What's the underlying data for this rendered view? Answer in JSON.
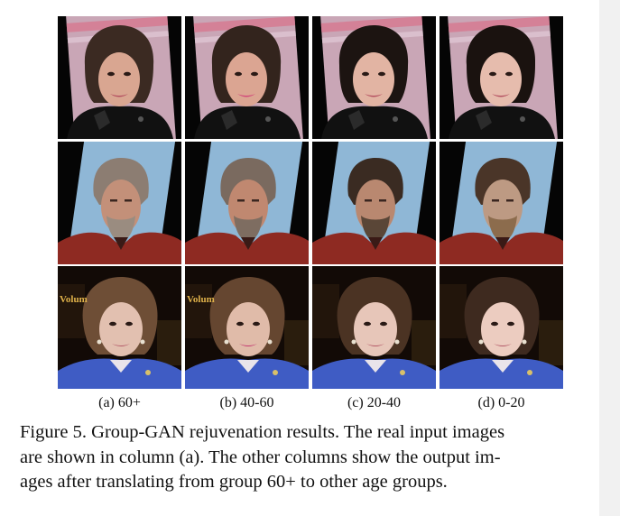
{
  "figure": {
    "columns": [
      {
        "caption": "(a) 60+"
      },
      {
        "caption": "(b) 40-60"
      },
      {
        "caption": "(c) 20-40"
      },
      {
        "caption": "(d) 0-20"
      }
    ],
    "rows": [
      {
        "subject": "woman with dark curly hair and dark top"
      },
      {
        "subject": "bearded man in red jacket"
      },
      {
        "subject": "woman with brown hair and blue jacket"
      }
    ],
    "text_in_image": "Volum",
    "caption_lines": [
      "Figure 5. Group-GAN rejuvenation results. The real input images",
      "are shown in column (a).  The other columns show the output im-",
      "ages after translating from group 60+ to other age groups."
    ]
  }
}
